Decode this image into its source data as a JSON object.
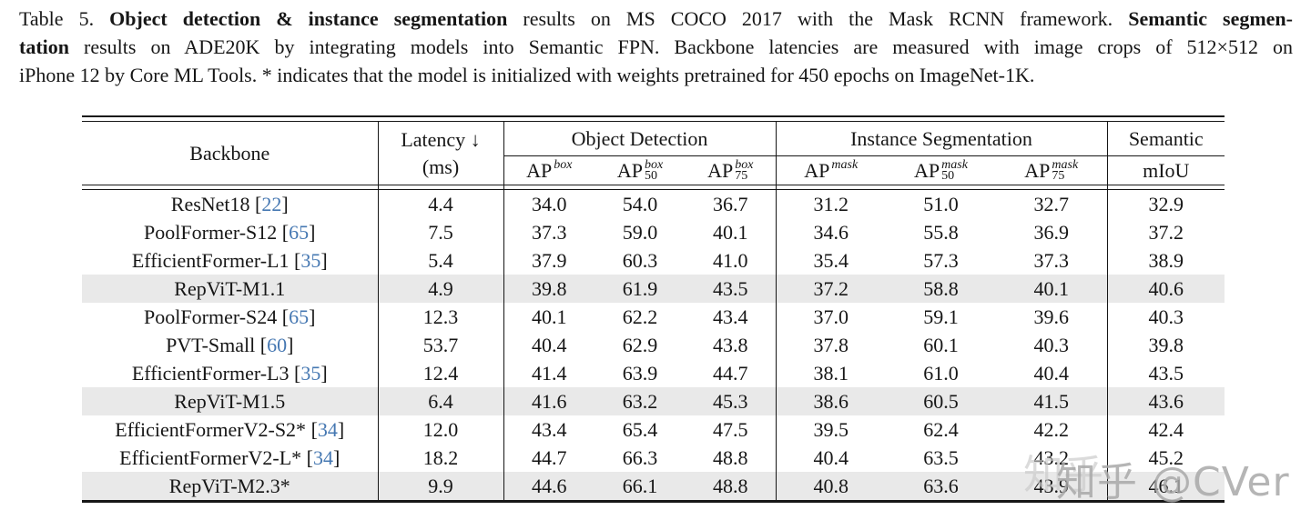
{
  "caption": {
    "lines": [
      {
        "justify": true,
        "segments": [
          {
            "text": "Table 5.  ",
            "bold": false
          },
          {
            "text": "Object detection & instance segmentation",
            "bold": true
          },
          {
            "text": " results on MS COCO 2017 with the Mask RCNN framework. ",
            "bold": false
          },
          {
            "text": "Semantic segmen-",
            "bold": true
          }
        ]
      },
      {
        "justify": true,
        "segments": [
          {
            "text": "tation",
            "bold": true
          },
          {
            "text": " results on ADE20K by integrating models into Semantic FPN. Backbone latencies are measured with image crops of 512×512 on",
            "bold": false
          }
        ]
      },
      {
        "justify": false,
        "segments": [
          {
            "text": "iPhone 12 by Core ML Tools. * indicates that the model is initialized with weights pretrained for 450 epochs on ImageNet-1K.",
            "bold": false
          }
        ]
      }
    ]
  },
  "table": {
    "header": {
      "backbone": "Backbone",
      "latency_line1": "Latency ↓",
      "latency_line2": "(ms)",
      "group_object_detection": "Object Detection",
      "group_instance_segmentation": "Instance Segmentation",
      "group_semantic": "Semantic",
      "miou": "mIoU",
      "ap_columns": [
        {
          "base": "AP",
          "sup": "box",
          "sub": ""
        },
        {
          "base": "AP",
          "sup": "box",
          "sub": "50"
        },
        {
          "base": "AP",
          "sup": "box",
          "sub": "75"
        },
        {
          "base": "AP",
          "sup": "mask",
          "sub": ""
        },
        {
          "base": "AP",
          "sup": "mask",
          "sub": "50"
        },
        {
          "base": "AP",
          "sup": "mask",
          "sub": "75"
        }
      ]
    },
    "value_keys": [
      "latency",
      "ap_box",
      "ap50_box",
      "ap75_box",
      "ap_mask",
      "ap50_mask",
      "ap75_mask",
      "miou"
    ],
    "rows": [
      {
        "backbone": "ResNet18",
        "cite": "22",
        "highlight": false,
        "latency": "4.4",
        "ap_box": "34.0",
        "ap50_box": "54.0",
        "ap75_box": "36.7",
        "ap_mask": "31.2",
        "ap50_mask": "51.0",
        "ap75_mask": "32.7",
        "miou": "32.9"
      },
      {
        "backbone": "PoolFormer-S12",
        "cite": "65",
        "highlight": false,
        "latency": "7.5",
        "ap_box": "37.3",
        "ap50_box": "59.0",
        "ap75_box": "40.1",
        "ap_mask": "34.6",
        "ap50_mask": "55.8",
        "ap75_mask": "36.9",
        "miou": "37.2"
      },
      {
        "backbone": "EfficientFormer-L1",
        "cite": "35",
        "highlight": false,
        "latency": "5.4",
        "ap_box": "37.9",
        "ap50_box": "60.3",
        "ap75_box": "41.0",
        "ap_mask": "35.4",
        "ap50_mask": "57.3",
        "ap75_mask": "37.3",
        "miou": "38.9"
      },
      {
        "backbone": "RepViT-M1.1",
        "cite": null,
        "highlight": true,
        "latency": "4.9",
        "ap_box": "39.8",
        "ap50_box": "61.9",
        "ap75_box": "43.5",
        "ap_mask": "37.2",
        "ap50_mask": "58.8",
        "ap75_mask": "40.1",
        "miou": "40.6"
      },
      {
        "backbone": "PoolFormer-S24",
        "cite": "65",
        "highlight": false,
        "latency": "12.3",
        "ap_box": "40.1",
        "ap50_box": "62.2",
        "ap75_box": "43.4",
        "ap_mask": "37.0",
        "ap50_mask": "59.1",
        "ap75_mask": "39.6",
        "miou": "40.3"
      },
      {
        "backbone": "PVT-Small",
        "cite": "60",
        "highlight": false,
        "latency": "53.7",
        "ap_box": "40.4",
        "ap50_box": "62.9",
        "ap75_box": "43.8",
        "ap_mask": "37.8",
        "ap50_mask": "60.1",
        "ap75_mask": "40.3",
        "miou": "39.8"
      },
      {
        "backbone": "EfficientFormer-L3",
        "cite": "35",
        "highlight": false,
        "latency": "12.4",
        "ap_box": "41.4",
        "ap50_box": "63.9",
        "ap75_box": "44.7",
        "ap_mask": "38.1",
        "ap50_mask": "61.0",
        "ap75_mask": "40.4",
        "miou": "43.5"
      },
      {
        "backbone": "RepViT-M1.5",
        "cite": null,
        "highlight": true,
        "latency": "6.4",
        "ap_box": "41.6",
        "ap50_box": "63.2",
        "ap75_box": "45.3",
        "ap_mask": "38.6",
        "ap50_mask": "60.5",
        "ap75_mask": "41.5",
        "miou": "43.6"
      },
      {
        "backbone": "EfficientFormerV2-S2*",
        "cite": "34",
        "highlight": false,
        "latency": "12.0",
        "ap_box": "43.4",
        "ap50_box": "65.4",
        "ap75_box": "47.5",
        "ap_mask": "39.5",
        "ap50_mask": "62.4",
        "ap75_mask": "42.2",
        "miou": "42.4"
      },
      {
        "backbone": "EfficientFormerV2-L*",
        "cite": "34",
        "highlight": false,
        "latency": "18.2",
        "ap_box": "44.7",
        "ap50_box": "66.3",
        "ap75_box": "48.8",
        "ap_mask": "40.4",
        "ap50_mask": "63.5",
        "ap75_mask": "43.2",
        "miou": "45.2"
      },
      {
        "backbone": "RepViT-M2.3*",
        "cite": null,
        "highlight": true,
        "latency": "9.9",
        "ap_box": "44.6",
        "ap50_box": "66.1",
        "ap75_box": "48.8",
        "ap_mask": "40.8",
        "ap50_mask": "63.6",
        "ap75_mask": "43.9",
        "miou": "46.1"
      }
    ]
  },
  "watermark": {
    "text": "知乎 @CVer",
    "echo": "知乎"
  },
  "colors": {
    "citation": "#4678b2",
    "highlight": "#e9e9e9",
    "rule": "#161616",
    "watermark": "#a9a9a9"
  }
}
